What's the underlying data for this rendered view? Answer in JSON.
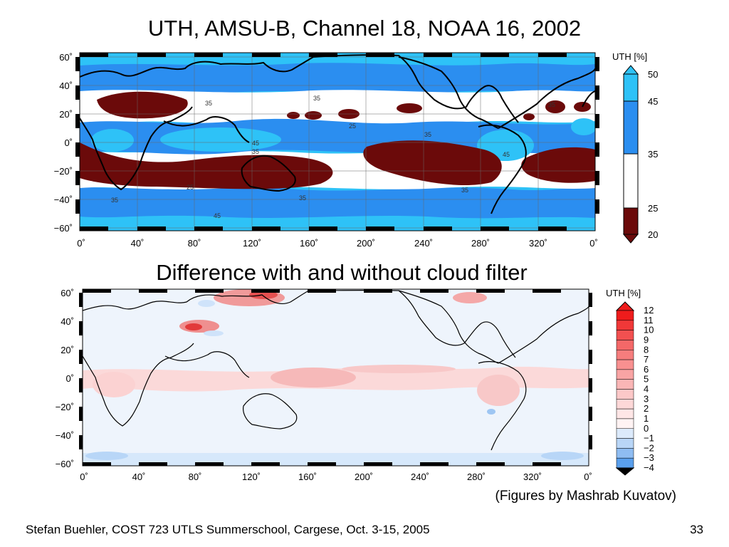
{
  "slide": {
    "title_top": "UTH, AMSU-B, Channel 18, NOAA 16, 2002",
    "title_bottom": "Difference with and without cloud filter",
    "credit": "(Figures by Mashrab Kuvatov)",
    "footer": "Stefan Buehler, COST 723 UTLS Summerschool, Cargese, Oct. 3-15, 2005",
    "page_number": "33"
  },
  "map_axes": {
    "lat_ticks": [
      "60˚",
      "40˚",
      "20˚",
      "0˚",
      "−20˚",
      "−40˚",
      "−60˚"
    ],
    "lon_ticks": [
      "0˚",
      "40˚",
      "80˚",
      "120˚",
      "160˚",
      "200˚",
      "240˚",
      "280˚",
      "320˚",
      "0˚"
    ]
  },
  "chart_data": [
    {
      "type": "heatmap",
      "title": "UTH, AMSU-B, Channel 18, NOAA 16, 2002",
      "colorbar_title": "UTH [%]",
      "colorbar_ticks": [
        "50",
        "45",
        "35",
        "25",
        "20"
      ],
      "levels": [
        20,
        25,
        35,
        45,
        50
      ],
      "colors": [
        "#6b0a0a",
        "#ffffff",
        "#2b8ef0",
        "#2ec2f7"
      ],
      "contour_labels": [
        "35",
        "45",
        "25"
      ],
      "xlim": [
        0,
        360
      ],
      "ylim": [
        -60,
        60
      ]
    },
    {
      "type": "heatmap",
      "title": "Difference with and without cloud filter",
      "colorbar_title": "UTH [%]",
      "colorbar_ticks": [
        "12",
        "11",
        "10",
        "9",
        "8",
        "7",
        "6",
        "5",
        "4",
        "3",
        "2",
        "1",
        "0",
        "−1",
        "−2",
        "−3",
        "−4"
      ],
      "levels": [
        -4,
        -3,
        -2,
        -1,
        0,
        1,
        2,
        3,
        4,
        5,
        6,
        7,
        8,
        9,
        10,
        11,
        12
      ],
      "xlim": [
        0,
        360
      ],
      "ylim": [
        -60,
        60
      ]
    }
  ]
}
